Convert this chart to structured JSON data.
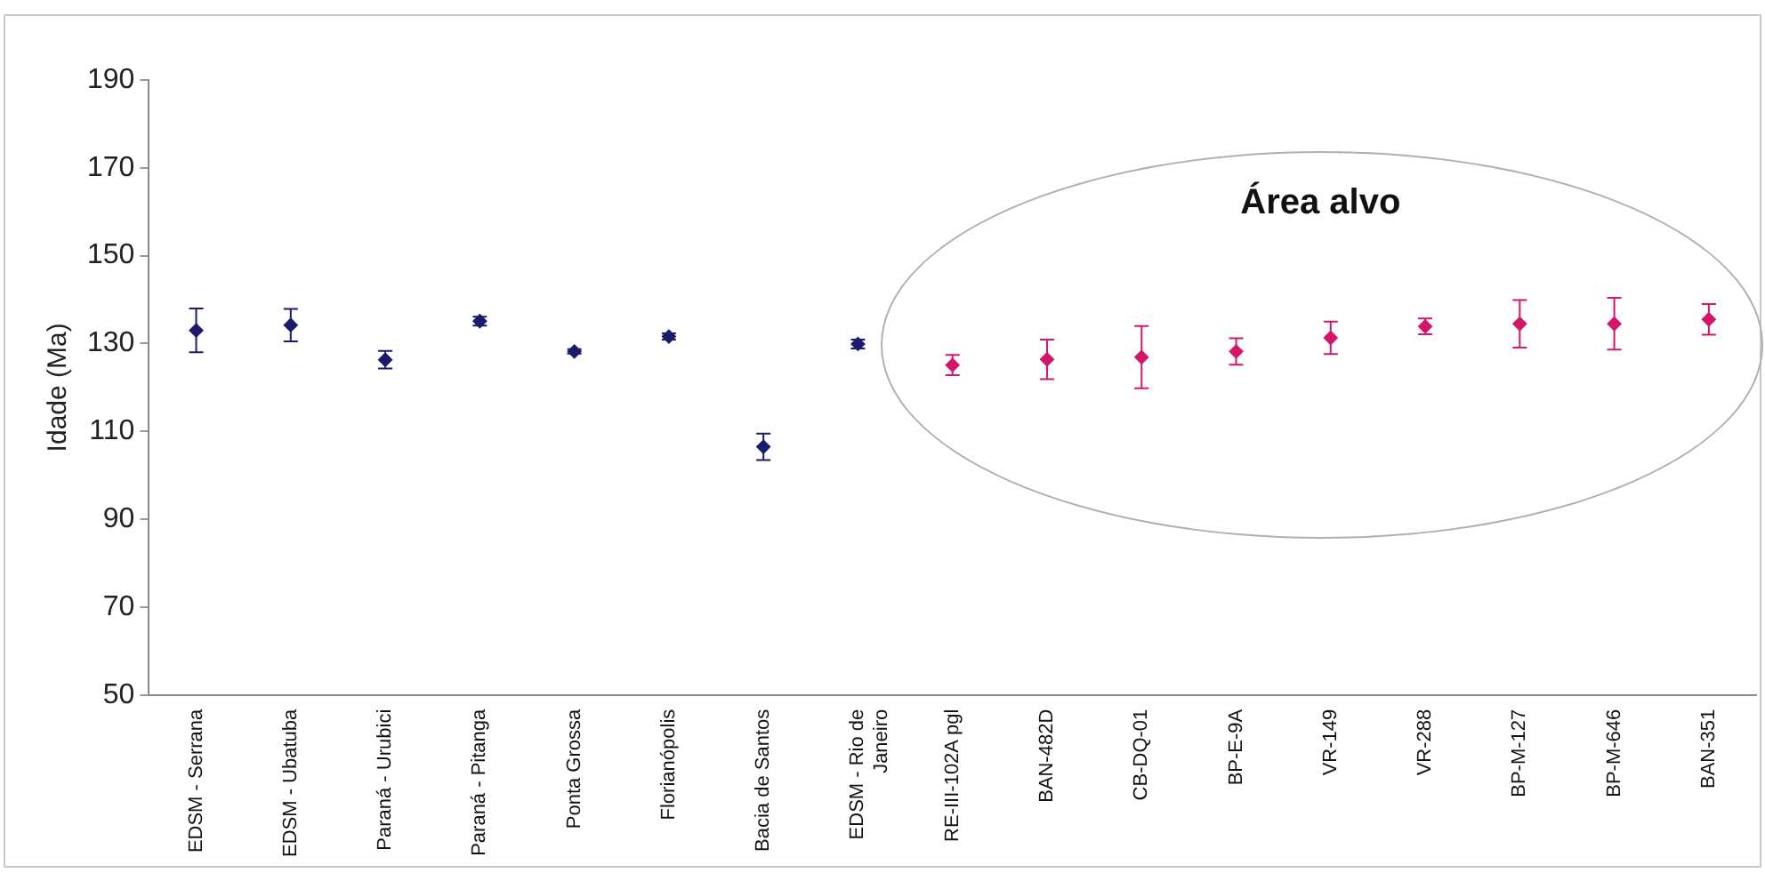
{
  "chart_data": {
    "type": "scatter",
    "categories": [
      "EDSM - Serrana",
      "EDSM - Ubatuba",
      "Paraná - Urubici",
      "Paraná - Pitanga",
      "Ponta Grossa",
      "Florianópolis",
      "Bacia de Santos",
      "EDSM - Rio de Janeiro",
      "RE-III-102A pgl",
      "BAN-482D",
      "CB-DQ-01",
      "BP-E-9A",
      "VR-149",
      "VR-288",
      "BP-M-127",
      "BP-M-646",
      "BAN-351"
    ],
    "series": [
      {
        "color": "#1c1c6e",
        "values": [
          133,
          134.2,
          126.3,
          135.1,
          128.2,
          131.6,
          106.5,
          129.9,
          null,
          null,
          null,
          null,
          null,
          null,
          null,
          null,
          null
        ],
        "errors": [
          5,
          3.7,
          2,
          1,
          0.5,
          0.7,
          3,
          1,
          null,
          null,
          null,
          null,
          null,
          null,
          null,
          null,
          null
        ]
      },
      {
        "color": "#d3176b",
        "values": [
          null,
          null,
          null,
          null,
          null,
          null,
          null,
          null,
          125.1,
          126.4,
          126.9,
          128.2,
          131.3,
          133.9,
          134.5,
          134.5,
          135.5
        ],
        "errors": [
          null,
          null,
          null,
          null,
          null,
          null,
          null,
          null,
          2.3,
          4.5,
          7.1,
          3,
          3.7,
          1.8,
          5.4,
          5.9,
          3.5
        ]
      }
    ],
    "ylabel": "Idade (Ma)",
    "ylim": [
      50,
      190
    ],
    "yticks": [
      50,
      70,
      90,
      110,
      130,
      150,
      170,
      190
    ],
    "marker": "diamond",
    "grid": false,
    "legend": false,
    "annotations": [
      "Área alvo"
    ]
  }
}
